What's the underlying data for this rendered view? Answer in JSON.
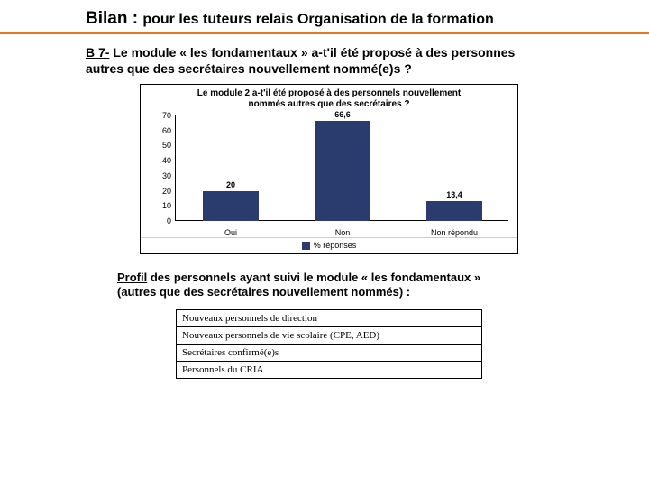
{
  "header": {
    "main": "Bilan :",
    "sub": "pour les tuteurs relais Organisation de la formation"
  },
  "question": {
    "prefix": "B 7-",
    "text_line1": " Le module « les fondamentaux » a-t'il été proposé à des personnes",
    "text_line2": "autres que des secrétaires nouvellement nommé(e)s ?"
  },
  "chart": {
    "type": "bar",
    "title_l1": "Le module 2 a-t'il été proposé à des personnels nouvellement",
    "title_l2": "nommés autres que des secrétaires ?",
    "categories": [
      "Oui",
      "Non",
      "Non répondu"
    ],
    "values": [
      20,
      66.6,
      13.4
    ],
    "value_labels": [
      "20",
      "66,6",
      "13,4"
    ],
    "bar_color": "#2a3c6e",
    "ylim_max": 70,
    "ytick_step": 10,
    "yticks": [
      "0",
      "10",
      "20",
      "30",
      "40",
      "50",
      "60",
      "70"
    ],
    "legend_label": "% réponses",
    "background_color": "#ffffff"
  },
  "profil": {
    "label": "Profil",
    "text_l1": " des personnels ayant suivi le module « les fondamentaux »",
    "text_l2": "(autres que des secrétaires nouvellement nommés) :"
  },
  "table_rows": [
    "Nouveaux personnels de direction",
    "Nouveaux personnels de vie scolaire (CPE, AED)",
    "Secrétaires confirmé(e)s",
    "Personnels du CRIA"
  ]
}
